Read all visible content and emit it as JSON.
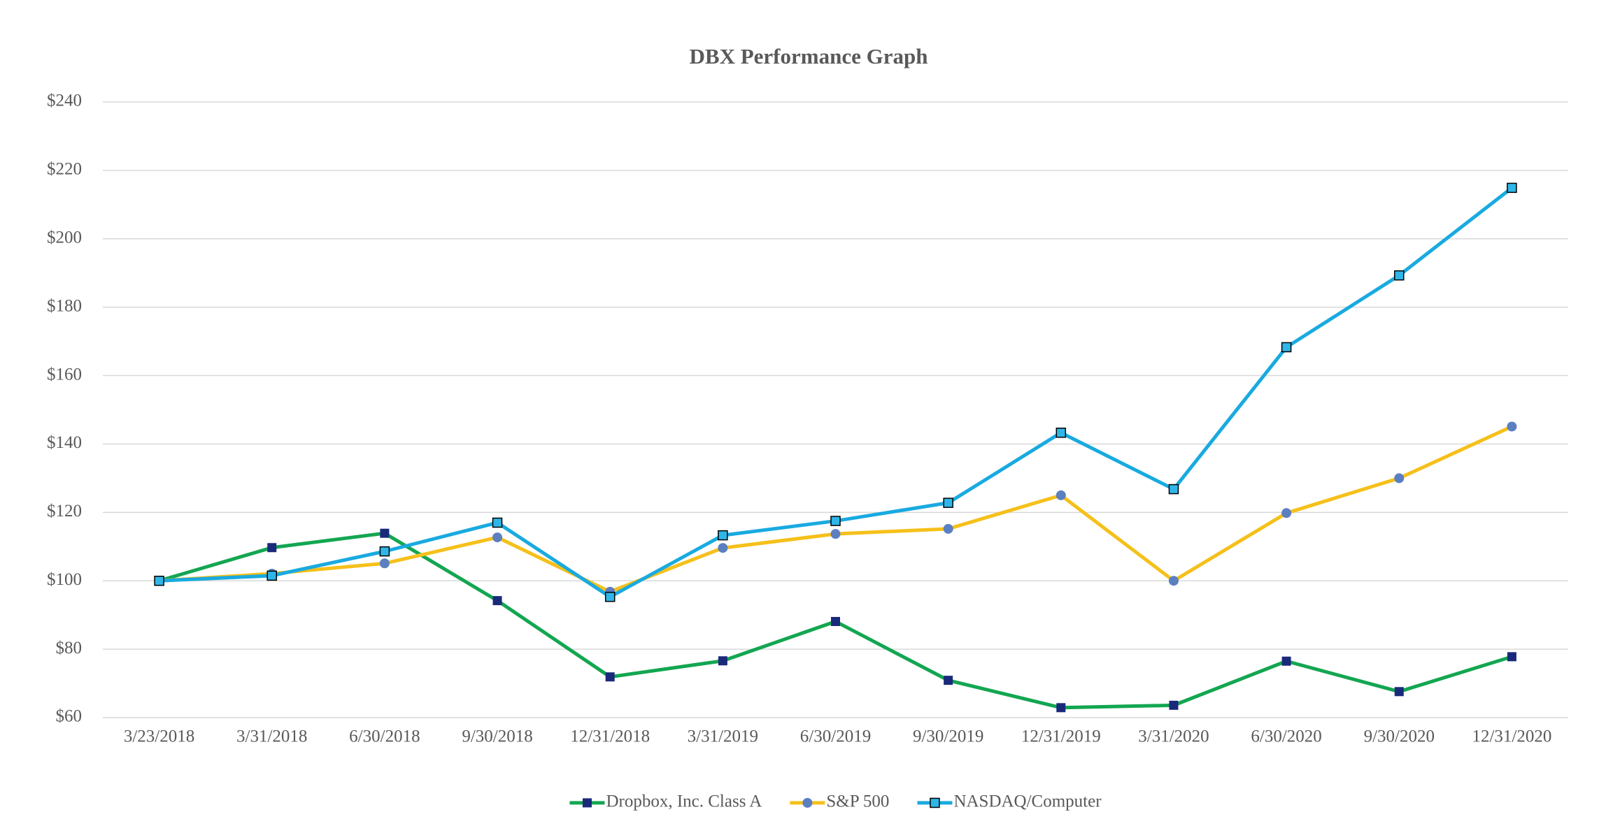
{
  "chart_data": {
    "type": "line",
    "title": "DBX Performance Graph",
    "categories": [
      "3/23/2018",
      "3/31/2018",
      "6/30/2018",
      "9/30/2018",
      "12/31/2018",
      "3/31/2019",
      "6/30/2019",
      "9/30/2019",
      "12/31/2019",
      "3/31/2020",
      "6/30/2020",
      "9/30/2020",
      "12/31/2020"
    ],
    "series": [
      {
        "name": "Dropbox, Inc. Class A",
        "color": "#13a651",
        "marker": "square",
        "marker_color": "#1a2a7a",
        "values": [
          100,
          109.7,
          113.9,
          94.2,
          71.9,
          76.6,
          88.1,
          70.9,
          62.9,
          63.6,
          76.5,
          67.6,
          77.8
        ]
      },
      {
        "name": "S&P 500",
        "color": "#f5c01a",
        "marker": "circle",
        "marker_color": "#5b7fc0",
        "values": [
          100,
          102.1,
          105.1,
          112.7,
          96.8,
          109.6,
          113.7,
          115.2,
          125.0,
          100.0,
          119.8,
          130.0,
          145.1
        ]
      },
      {
        "name": "NASDAQ/Computer",
        "color": "#19aae0",
        "marker": "square",
        "marker_color": "#2fb6e8",
        "values": [
          100,
          101.5,
          108.6,
          117.0,
          95.3,
          113.3,
          117.5,
          122.8,
          143.3,
          126.8,
          168.3,
          189.3,
          214.9
        ]
      }
    ],
    "ylim": [
      60,
      240
    ],
    "yticks": [
      {
        "value": 60,
        "label": "$60"
      },
      {
        "value": 80,
        "label": "$80"
      },
      {
        "value": 100,
        "label": "$100"
      },
      {
        "value": 120,
        "label": "$120"
      },
      {
        "value": 140,
        "label": "$140"
      },
      {
        "value": 160,
        "label": "$160"
      },
      {
        "value": 180,
        "label": "$180"
      },
      {
        "value": 200,
        "label": "$200"
      },
      {
        "value": 220,
        "label": "$220"
      },
      {
        "value": 240,
        "label": "$240"
      }
    ],
    "grid": true,
    "legend": "bottom"
  }
}
